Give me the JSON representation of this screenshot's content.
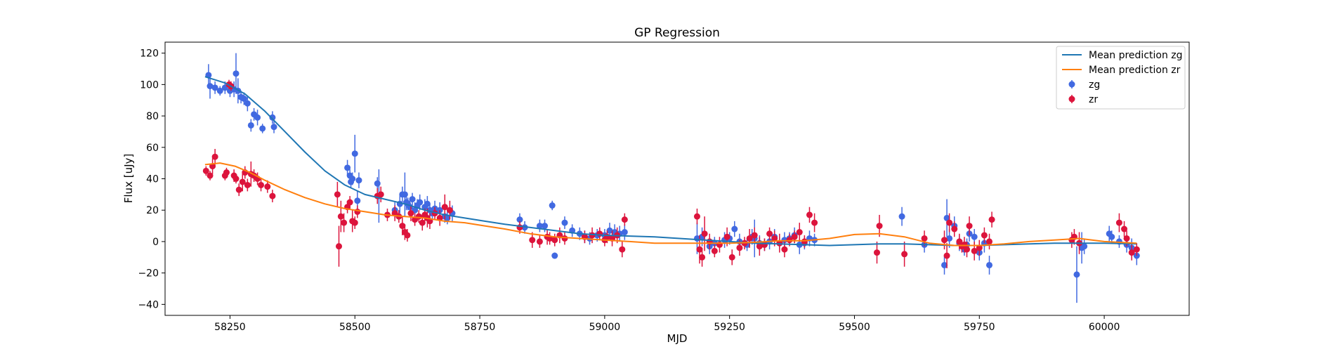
{
  "chart_data": {
    "type": "scatter",
    "title": "GP Regression",
    "xlabel": "MJD",
    "ylabel": "Flux [uJy]",
    "xlim": [
      58120,
      60170
    ],
    "ylim": [
      -47,
      127
    ],
    "xticks": [
      58250,
      58500,
      58750,
      59000,
      59250,
      59500,
      59750,
      60000
    ],
    "yticks": [
      -40,
      -20,
      0,
      20,
      40,
      60,
      80,
      100,
      120
    ],
    "grid": false,
    "legend_position": "top-right",
    "colors": {
      "zg": "#4169e1",
      "zr": "#dc143c",
      "mean_zg": "#1f77b4",
      "mean_zr": "#ff7f0e"
    },
    "lines": [
      {
        "name": "Mean prediction zg",
        "x": [
          58200,
          58240,
          58280,
          58320,
          58360,
          58400,
          58440,
          58480,
          58520,
          58560,
          58600,
          58640,
          58680,
          58720,
          58760,
          58800,
          58850,
          58900,
          58950,
          59000,
          59050,
          59100,
          59150,
          59200,
          59250,
          59300,
          59350,
          59400,
          59450,
          59500,
          59550,
          59600,
          59650,
          59700,
          59750,
          59800,
          59850,
          59900,
          59950,
          60000,
          60065
        ],
        "y": [
          105,
          101,
          94,
          83,
          70,
          57,
          45,
          36,
          30,
          27,
          24,
          20,
          17,
          15,
          13,
          11,
          9,
          7,
          5,
          4,
          3.5,
          3,
          2,
          1,
          0,
          -1,
          -1.5,
          -2,
          -2.5,
          -2,
          -1.5,
          -1.5,
          -2,
          -2.5,
          -2.5,
          -2,
          -1.5,
          -1,
          -1,
          -1,
          -1.5
        ]
      },
      {
        "name": "Mean prediction zr",
        "x": [
          58200,
          58230,
          58260,
          58290,
          58320,
          58360,
          58400,
          58440,
          58480,
          58520,
          58560,
          58600,
          58640,
          58680,
          58720,
          58760,
          58800,
          58850,
          58900,
          58950,
          59000,
          59050,
          59100,
          59150,
          59200,
          59250,
          59300,
          59350,
          59400,
          59450,
          59500,
          59550,
          59600,
          59650,
          59700,
          59750,
          59800,
          59850,
          59900,
          59950,
          60000,
          60065
        ],
        "y": [
          49,
          50,
          48,
          44,
          39,
          33,
          28,
          24,
          21,
          19,
          17,
          16,
          15,
          13,
          12,
          10,
          8,
          5,
          3,
          2,
          1,
          0,
          -1,
          -1,
          -1,
          -1,
          -0.5,
          0.5,
          0.5,
          2,
          4.5,
          5,
          3,
          -1,
          -2.5,
          -2.5,
          -1.5,
          0,
          1,
          2,
          0,
          -1
        ]
      }
    ],
    "series": [
      {
        "name": "zg",
        "x": [
          58207,
          58210,
          58220,
          58230,
          58240,
          58250,
          58258,
          58262,
          58266,
          58272,
          58278,
          58285,
          58292,
          58298,
          58305,
          58315,
          58335,
          58338,
          58485,
          58490,
          58492,
          58495,
          58500,
          58505,
          58508,
          58545,
          58548,
          58580,
          58590,
          58595,
          58600,
          58603,
          58606,
          58610,
          58615,
          58620,
          58625,
          58630,
          58640,
          58645,
          58650,
          58655,
          58660,
          58670,
          58680,
          58685,
          58695,
          58830,
          58840,
          58870,
          58880,
          58895,
          58900,
          58920,
          58935,
          58950,
          58960,
          58970,
          58985,
          59000,
          59010,
          59020,
          59030,
          59040,
          59185,
          59195,
          59210,
          59220,
          59240,
          59250,
          59260,
          59270,
          59285,
          59295,
          59300,
          59310,
          59320,
          59330,
          59340,
          59350,
          59360,
          59370,
          59380,
          59390,
          59400,
          59410,
          59420,
          59595,
          59640,
          59680,
          59685,
          59690,
          59700,
          59710,
          59720,
          59725,
          59730,
          59740,
          59750,
          59760,
          59770,
          59945,
          59955,
          59960,
          60010,
          60015,
          60030,
          60045,
          60055,
          60065
        ],
        "y": [
          106,
          99,
          98,
          96,
          98,
          96,
          97,
          107,
          96,
          92,
          91,
          88,
          74,
          81,
          79,
          72,
          79,
          73,
          47,
          42,
          38,
          40,
          56,
          26,
          39,
          37,
          29,
          20,
          24,
          30,
          30,
          25,
          24,
          22,
          27,
          20,
          23,
          25,
          22,
          24,
          20,
          18,
          21,
          20,
          16,
          15,
          18,
          14,
          9,
          10,
          10,
          23,
          -9,
          12,
          7,
          5,
          3,
          2,
          4,
          4,
          7,
          6,
          5,
          6,
          2,
          3,
          -3,
          -1,
          1,
          2,
          8,
          0,
          -2,
          3,
          2,
          -1,
          -2,
          0,
          3,
          -1,
          1,
          2,
          4,
          -2,
          -1,
          2,
          1,
          16,
          -2,
          -15,
          15,
          2,
          10,
          -1,
          -5,
          -2,
          5,
          3,
          -7,
          -1,
          -15,
          -21,
          -4,
          -3,
          5,
          3,
          0,
          -2,
          -4,
          -9
        ],
        "yerr": [
          7,
          8,
          4,
          3,
          4,
          4,
          5,
          13,
          8,
          4,
          4,
          5,
          4,
          4,
          5,
          3,
          4,
          4,
          5,
          4,
          4,
          4,
          12,
          6,
          5,
          4,
          17,
          5,
          6,
          5,
          14,
          5,
          4,
          5,
          4,
          5,
          4,
          5,
          5,
          5,
          4,
          4,
          5,
          5,
          4,
          4,
          5,
          4,
          4,
          4,
          4,
          3,
          2,
          4,
          4,
          4,
          4,
          4,
          4,
          4,
          5,
          5,
          5,
          5,
          10,
          6,
          5,
          4,
          5,
          4,
          5,
          5,
          4,
          5,
          12,
          5,
          4,
          5,
          5,
          4,
          5,
          4,
          5,
          6,
          4,
          5,
          4,
          6,
          5,
          6,
          12,
          6,
          6,
          5,
          4,
          4,
          5,
          5,
          5,
          6,
          6,
          18,
          10,
          5,
          5,
          4,
          4,
          5,
          6,
          6
        ]
      },
      {
        "name": "zr",
        "x": [
          58202,
          58210,
          58215,
          58220,
          58240,
          58243,
          58248,
          58252,
          58258,
          58262,
          58268,
          58275,
          58280,
          58285,
          58292,
          58298,
          58305,
          58312,
          58325,
          58335,
          58465,
          58468,
          58472,
          58478,
          58485,
          58490,
          58495,
          58500,
          58505,
          58545,
          58552,
          58565,
          58580,
          58588,
          58595,
          58600,
          58605,
          58612,
          58620,
          58628,
          58635,
          58640,
          58645,
          58650,
          58660,
          58670,
          58680,
          58690,
          58830,
          58855,
          58870,
          58885,
          58890,
          58900,
          58910,
          58920,
          58960,
          58975,
          58990,
          59000,
          59005,
          59015,
          59025,
          59035,
          59040,
          59185,
          59190,
          59195,
          59200,
          59210,
          59220,
          59230,
          59245,
          59255,
          59270,
          59280,
          59290,
          59300,
          59310,
          59320,
          59330,
          59340,
          59350,
          59360,
          59370,
          59380,
          59390,
          59400,
          59410,
          59420,
          59545,
          59550,
          59600,
          59640,
          59680,
          59685,
          59690,
          59700,
          59710,
          59715,
          59720,
          59725,
          59730,
          59740,
          59750,
          59760,
          59770,
          59775,
          59935,
          59940,
          59950,
          60030,
          60040,
          60045,
          60055,
          60065
        ],
        "y": [
          45,
          42,
          48,
          54,
          42,
          44,
          100,
          99,
          42,
          40,
          33,
          38,
          44,
          36,
          43,
          42,
          40,
          36,
          35,
          29,
          30,
          -3,
          16,
          12,
          22,
          25,
          13,
          12,
          19,
          29,
          30,
          17,
          18,
          16,
          10,
          6,
          4,
          18,
          14,
          16,
          12,
          17,
          15,
          13,
          18,
          15,
          22,
          20,
          9,
          1,
          0,
          3,
          2,
          1,
          4,
          2,
          3,
          4,
          5,
          1,
          3,
          2,
          4,
          -5,
          14,
          16,
          -5,
          -10,
          5,
          0,
          -6,
          -2,
          3,
          -10,
          -4,
          -1,
          2,
          4,
          -3,
          -2,
          5,
          2,
          -1,
          -5,
          1,
          3,
          6,
          0,
          17,
          12,
          -7,
          10,
          -8,
          2,
          1,
          -9,
          12,
          8,
          0,
          -3,
          -2,
          -5,
          10,
          -6,
          -4,
          4,
          0,
          14,
          1,
          3,
          -1,
          12,
          8,
          2,
          -7,
          -5
        ],
        "yerr": [
          3,
          3,
          5,
          5,
          3,
          3,
          3,
          3,
          4,
          3,
          4,
          6,
          4,
          4,
          8,
          4,
          4,
          4,
          4,
          4,
          8,
          13,
          10,
          6,
          4,
          4,
          7,
          4,
          4,
          5,
          5,
          4,
          5,
          4,
          6,
          5,
          4,
          5,
          4,
          4,
          5,
          4,
          6,
          5,
          4,
          5,
          8,
          6,
          4,
          5,
          4,
          5,
          4,
          4,
          5,
          4,
          4,
          5,
          4,
          4,
          4,
          5,
          5,
          5,
          4,
          5,
          9,
          6,
          11,
          5,
          4,
          5,
          6,
          5,
          5,
          4,
          6,
          5,
          6,
          4,
          4,
          5,
          6,
          5,
          4,
          4,
          6,
          4,
          5,
          6,
          7,
          7,
          8,
          5,
          6,
          8,
          6,
          5,
          5,
          4,
          5,
          5,
          6,
          6,
          5,
          5,
          5,
          5,
          5,
          5,
          7,
          6,
          5,
          5,
          5,
          4
        ]
      }
    ],
    "legend": [
      "Mean prediction zg",
      "Mean prediction zr",
      "zg",
      "zr"
    ]
  }
}
